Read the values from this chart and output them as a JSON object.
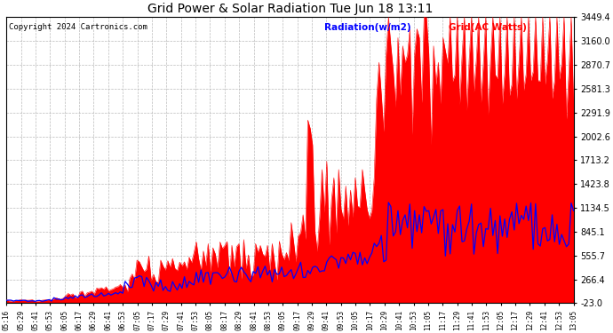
{
  "title": "Grid Power & Solar Radiation Tue Jun 18 13:11",
  "copyright": "Copyright 2024 Cartronics.com",
  "legend_radiation": "Radiation(w/m2)",
  "legend_grid": "Grid(AC Watts)",
  "yticks": [
    3449.4,
    3160.0,
    2870.7,
    2581.3,
    2291.9,
    2002.6,
    1713.2,
    1423.8,
    1134.5,
    845.1,
    555.7,
    266.4,
    -23.0
  ],
  "ymin": -23.0,
  "ymax": 3449.4,
  "bg_color": "#ffffff",
  "plot_bg_color": "#ffffff",
  "grid_color": "#aaaaaa",
  "bar_color": "#ff0000",
  "line_color": "#0000ff",
  "title_color": "#000000",
  "copyright_color": "#000000",
  "legend_radiation_color": "#0000ff",
  "legend_grid_color": "#ff0000"
}
